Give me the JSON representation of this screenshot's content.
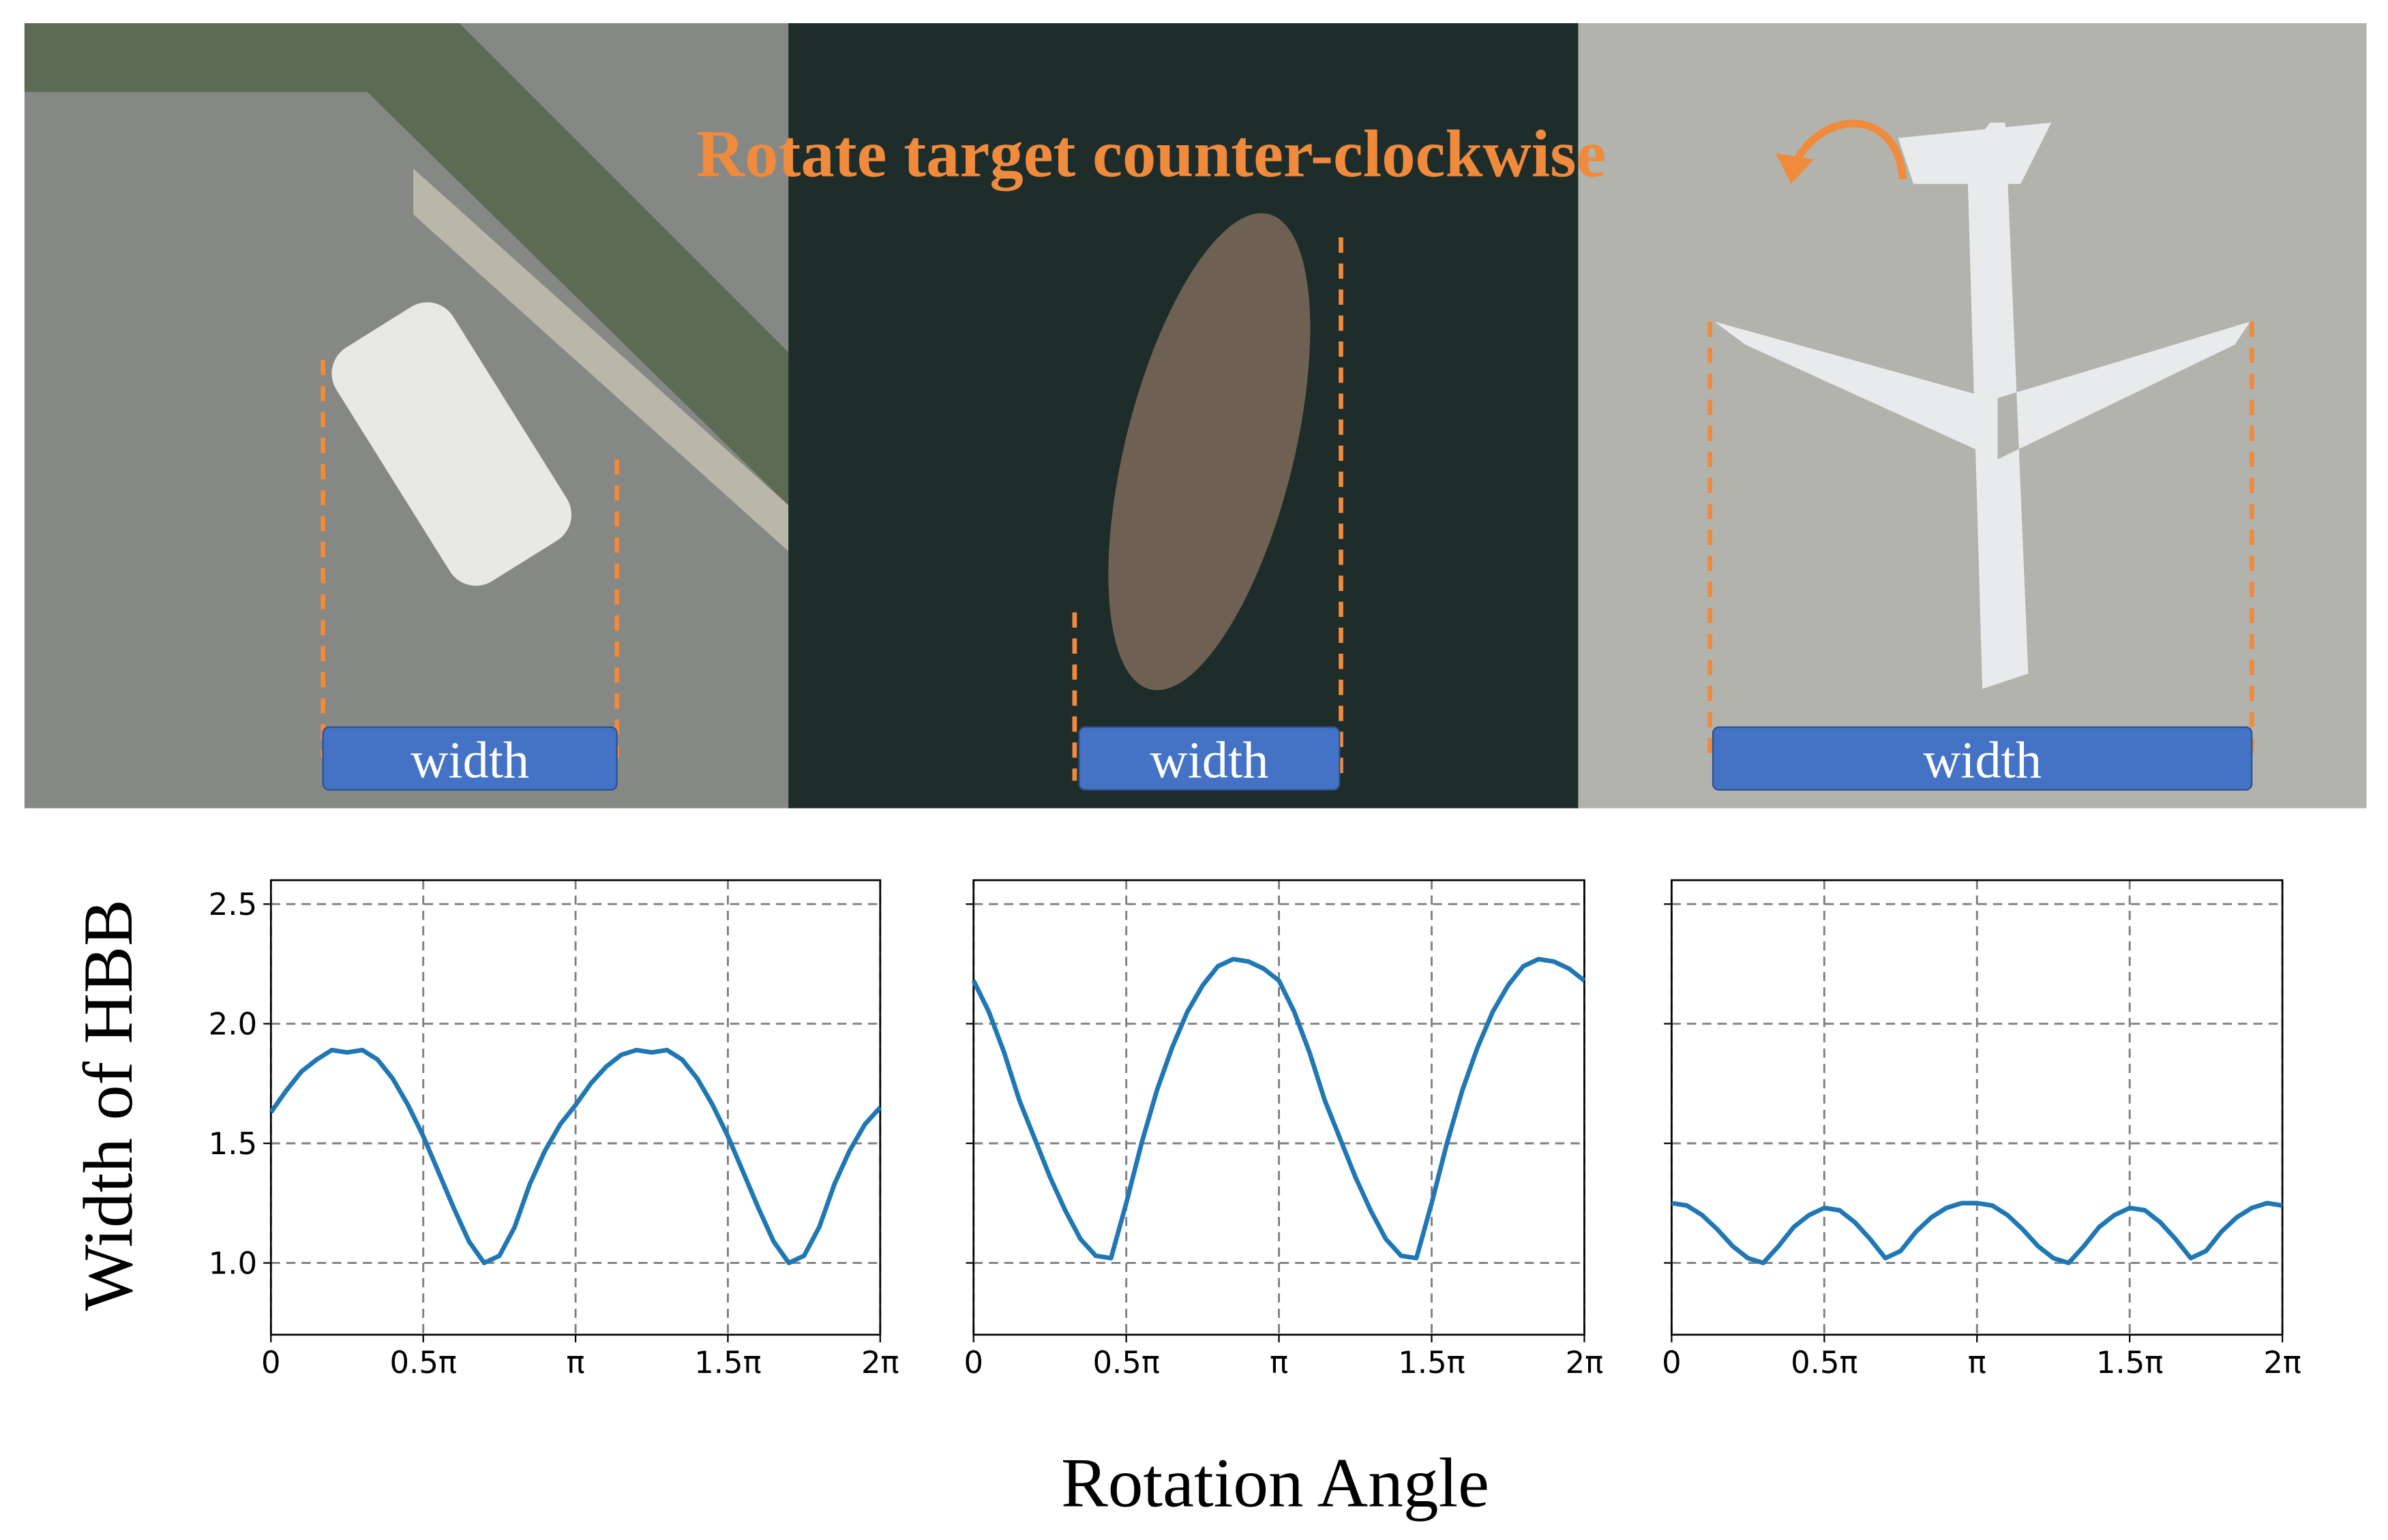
{
  "annotation": "Rotate target counter-clockwise",
  "width_labels": [
    "width",
    "width",
    "width"
  ],
  "ylabel": "Width of HBB",
  "xlabel": "Rotation Angle",
  "chart_data": [
    {
      "type": "line",
      "color": "#1f77b4",
      "grid": true,
      "x": [
        0,
        0.05,
        0.1,
        0.15,
        0.2,
        0.25,
        0.3,
        0.35,
        0.4,
        0.45,
        0.5,
        0.55,
        0.6,
        0.65,
        0.7,
        0.75,
        0.8,
        0.85,
        0.9,
        0.95,
        1,
        1.05,
        1.1,
        1.15,
        1.2,
        1.25,
        1.3,
        1.35,
        1.4,
        1.45,
        1.5,
        1.55,
        1.6,
        1.65,
        1.7,
        1.75,
        1.8,
        1.85,
        1.9,
        1.95,
        2
      ],
      "values": [
        1.63,
        1.72,
        1.8,
        1.85,
        1.89,
        1.88,
        1.89,
        1.85,
        1.77,
        1.66,
        1.53,
        1.38,
        1.23,
        1.09,
        1.0,
        1.03,
        1.15,
        1.33,
        1.47,
        1.58,
        1.66,
        1.75,
        1.82,
        1.87,
        1.89,
        1.88,
        1.89,
        1.85,
        1.77,
        1.66,
        1.53,
        1.38,
        1.23,
        1.09,
        1.0,
        1.03,
        1.15,
        1.33,
        1.47,
        1.58,
        1.65
      ],
      "xlim": [
        0,
        2
      ],
      "ylim": [
        0.7,
        2.6
      ],
      "xticks": [
        0,
        {
          "value": 0.5,
          "label": "0.5π"
        },
        {
          "value": 1,
          "label": "π"
        },
        {
          "value": 1.5,
          "label": "1.5π"
        },
        {
          "value": 2,
          "label": "2π"
        }
      ],
      "yticks": [
        {
          "value": 1,
          "label": "1.0"
        },
        1.5,
        {
          "value": 2,
          "label": "2.0"
        },
        2.5
      ]
    },
    {
      "type": "line",
      "color": "#1f77b4",
      "grid": true,
      "x": [
        0,
        0.05,
        0.1,
        0.15,
        0.2,
        0.25,
        0.3,
        0.35,
        0.4,
        0.45,
        0.5,
        0.55,
        0.6,
        0.65,
        0.7,
        0.75,
        0.8,
        0.85,
        0.9,
        0.95,
        1,
        1.05,
        1.1,
        1.15,
        1.2,
        1.25,
        1.3,
        1.35,
        1.4,
        1.45,
        1.5,
        1.55,
        1.6,
        1.65,
        1.7,
        1.75,
        1.8,
        1.85,
        1.9,
        1.95,
        2
      ],
      "values": [
        2.18,
        2.05,
        1.88,
        1.68,
        1.52,
        1.36,
        1.22,
        1.1,
        1.03,
        1.02,
        1.25,
        1.5,
        1.72,
        1.9,
        2.05,
        2.16,
        2.24,
        2.27,
        2.26,
        2.23,
        2.18,
        2.05,
        1.88,
        1.68,
        1.52,
        1.36,
        1.22,
        1.1,
        1.03,
        1.02,
        1.25,
        1.5,
        1.72,
        1.9,
        2.05,
        2.16,
        2.24,
        2.27,
        2.26,
        2.23,
        2.18
      ],
      "xlim": [
        0,
        2
      ],
      "ylim": [
        0.7,
        2.6
      ],
      "xticks": [
        0,
        {
          "value": 0.5,
          "label": "0.5π"
        },
        {
          "value": 1,
          "label": "π"
        },
        {
          "value": 1.5,
          "label": "1.5π"
        },
        {
          "value": 2,
          "label": "2π"
        }
      ],
      "yticks": [
        1,
        1.5,
        2,
        2.5
      ]
    },
    {
      "type": "line",
      "color": "#1f77b4",
      "grid": true,
      "x": [
        0,
        0.05,
        0.1,
        0.15,
        0.2,
        0.25,
        0.3,
        0.35,
        0.4,
        0.45,
        0.5,
        0.55,
        0.6,
        0.65,
        0.7,
        0.75,
        0.8,
        0.85,
        0.9,
        0.95,
        1,
        1.05,
        1.1,
        1.15,
        1.2,
        1.25,
        1.3,
        1.35,
        1.4,
        1.45,
        1.5,
        1.55,
        1.6,
        1.65,
        1.7,
        1.75,
        1.8,
        1.85,
        1.9,
        1.95,
        2
      ],
      "values": [
        1.25,
        1.24,
        1.2,
        1.14,
        1.07,
        1.02,
        1.0,
        1.07,
        1.15,
        1.2,
        1.23,
        1.22,
        1.17,
        1.1,
        1.02,
        1.05,
        1.13,
        1.19,
        1.23,
        1.25,
        1.25,
        1.24,
        1.2,
        1.14,
        1.07,
        1.02,
        1.0,
        1.07,
        1.15,
        1.2,
        1.23,
        1.22,
        1.17,
        1.1,
        1.02,
        1.05,
        1.13,
        1.19,
        1.23,
        1.25,
        1.24
      ],
      "xlim": [
        0,
        2
      ],
      "ylim": [
        0.7,
        2.6
      ],
      "xticks": [
        0,
        {
          "value": 0.5,
          "label": "0.5π"
        },
        {
          "value": 1,
          "label": "π"
        },
        {
          "value": 1.5,
          "label": "1.5π"
        },
        {
          "value": 2,
          "label": "2π"
        }
      ],
      "yticks": [
        1,
        1.5,
        2,
        2.5
      ]
    }
  ]
}
